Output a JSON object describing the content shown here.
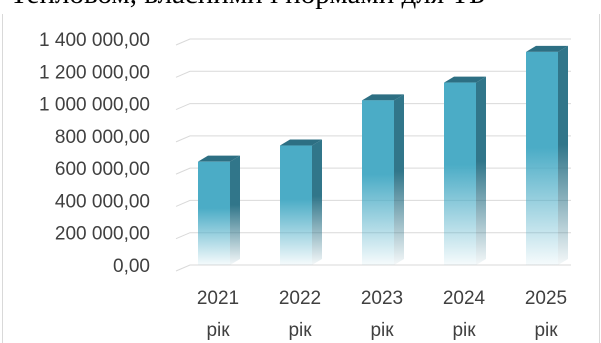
{
  "header_text": "Тепловом, власними і нормами для ТБ",
  "chart_data": {
    "type": "bar",
    "categories": [
      [
        "2021",
        "рік"
      ],
      [
        "2022",
        "рік"
      ],
      [
        "2023",
        "рік"
      ],
      [
        "2024",
        "рік"
      ],
      [
        "2025",
        "рік"
      ]
    ],
    "values": [
      640000,
      740000,
      1020000,
      1130000,
      1320000
    ],
    "ylim": [
      0,
      1400000
    ],
    "yticks": [
      0,
      200000,
      400000,
      600000,
      800000,
      1000000,
      1200000,
      1400000
    ],
    "ytick_labels": [
      "0,00",
      "200 000,00",
      "400 000,00",
      "600 000,00",
      "800 000,00",
      "1 000 000,00",
      "1 200 000,00",
      "1 400 000,00"
    ],
    "grid": true,
    "style": "3d-column",
    "colors": {
      "bar_front": "#4bacc6",
      "bar_side": "#31768a",
      "bar_top": "#2d6f83",
      "grid": "#d9d9d9",
      "text": "#404040"
    }
  }
}
